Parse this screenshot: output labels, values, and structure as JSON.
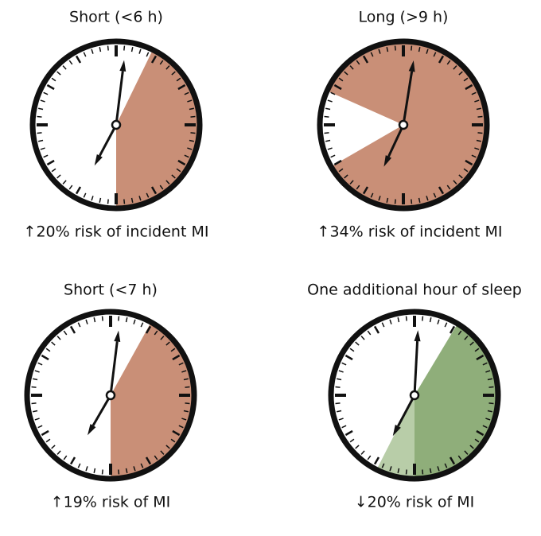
{
  "clocks": [
    {
      "title": "Short (<6 h)",
      "caption": "↑20% risk of incident MI"
    },
    {
      "title": "Long (>9 h)",
      "caption": "↑34% risk of incident MI"
    },
    {
      "title": "Short (<7 h)",
      "caption": "↑19% risk of MI"
    },
    {
      "title": "One additional hour of sleep",
      "caption": "↓20% risk of MI"
    }
  ]
}
